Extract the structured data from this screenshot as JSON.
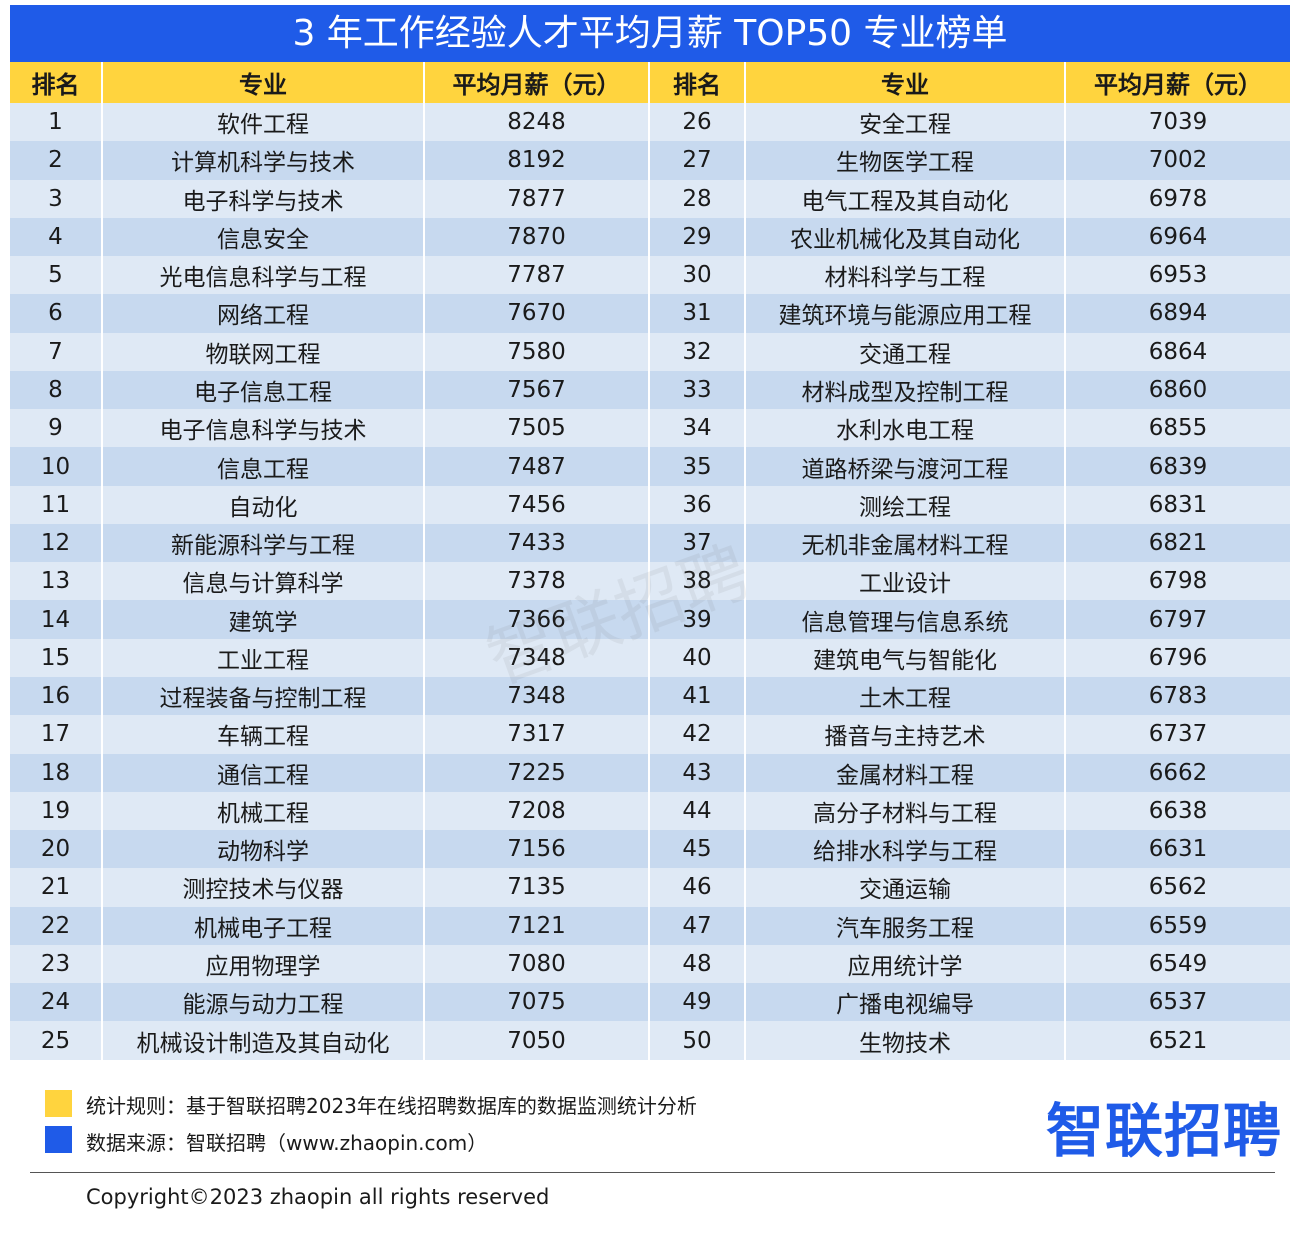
{
  "header": {
    "title": "3 年工作经验人才平均月薪 TOP50 专业榜单"
  },
  "table": {
    "headers": [
      "排名",
      "专业",
      "平均月薪（元）",
      "排名",
      "专业",
      "平均月薪（元）"
    ],
    "rows": [
      [
        1,
        "软件工程",
        8248,
        26,
        "安全工程",
        7039
      ],
      [
        2,
        "计算机科学与技术",
        8192,
        27,
        "生物医学工程",
        7002
      ],
      [
        3,
        "电子科学与技术",
        7877,
        28,
        "电气工程及其自动化",
        6978
      ],
      [
        4,
        "信息安全",
        7870,
        29,
        "农业机械化及其自动化",
        6964
      ],
      [
        5,
        "光电信息科学与工程",
        7787,
        30,
        "材料科学与工程",
        6953
      ],
      [
        6,
        "网络工程",
        7670,
        31,
        "建筑环境与能源应用工程",
        6894
      ],
      [
        7,
        "物联网工程",
        7580,
        32,
        "交通工程",
        6864
      ],
      [
        8,
        "电子信息工程",
        7567,
        33,
        "材料成型及控制工程",
        6860
      ],
      [
        9,
        "电子信息科学与技术",
        7505,
        34,
        "水利水电工程",
        6855
      ],
      [
        10,
        "信息工程",
        7487,
        35,
        "道路桥梁与渡河工程",
        6839
      ],
      [
        11,
        "自动化",
        7456,
        36,
        "测绘工程",
        6831
      ],
      [
        12,
        "新能源科学与工程",
        7433,
        37,
        "无机非金属材料工程",
        6821
      ],
      [
        13,
        "信息与计算科学",
        7378,
        38,
        "工业设计",
        6798
      ],
      [
        14,
        "建筑学",
        7366,
        39,
        "信息管理与信息系统",
        6797
      ],
      [
        15,
        "工业工程",
        7348,
        40,
        "建筑电气与智能化",
        6796
      ],
      [
        16,
        "过程装备与控制工程",
        7348,
        41,
        "土木工程",
        6783
      ],
      [
        17,
        "车辆工程",
        7317,
        42,
        "播音与主持艺术",
        6737
      ],
      [
        18,
        "通信工程",
        7225,
        43,
        "金属材料工程",
        6662
      ],
      [
        19,
        "机械工程",
        7208,
        44,
        "高分子材料与工程",
        6638
      ],
      [
        20,
        "动物科学",
        7156,
        45,
        "给排水科学与工程",
        6631
      ],
      [
        21,
        "测控技术与仪器",
        7135,
        46,
        "交通运输",
        6562
      ],
      [
        22,
        "机械电子工程",
        7121,
        47,
        "汽车服务工程",
        6559
      ],
      [
        23,
        "应用物理学",
        7080,
        48,
        "应用统计学",
        6549
      ],
      [
        24,
        "能源与动力工程",
        7075,
        49,
        "广播电视编导",
        6537
      ],
      [
        25,
        "机械设计制造及其自动化",
        7050,
        50,
        "生物技术",
        6521
      ]
    ]
  },
  "watermark": "智联招聘",
  "footer": {
    "notes": [
      "统计规则：基于智联招聘2023年在线招聘数据库的数据监测统计分析",
      "数据来源：智联招聘（www.zhaopin.com）"
    ],
    "logo": "智联招聘",
    "copyright": "Copyright©2023 zhaopin all rights reserved"
  }
}
